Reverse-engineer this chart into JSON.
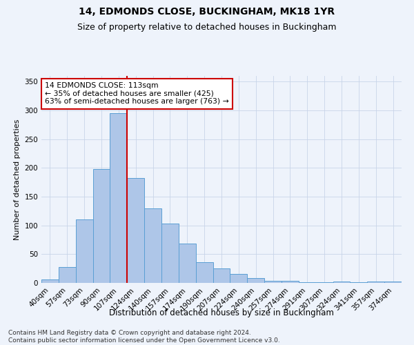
{
  "title": "14, EDMONDS CLOSE, BUCKINGHAM, MK18 1YR",
  "subtitle": "Size of property relative to detached houses in Buckingham",
  "xlabel": "Distribution of detached houses by size in Buckingham",
  "ylabel": "Number of detached properties",
  "categories": [
    "40sqm",
    "57sqm",
    "73sqm",
    "90sqm",
    "107sqm",
    "124sqm",
    "140sqm",
    "157sqm",
    "174sqm",
    "190sqm",
    "207sqm",
    "224sqm",
    "240sqm",
    "257sqm",
    "274sqm",
    "291sqm",
    "307sqm",
    "324sqm",
    "341sqm",
    "357sqm",
    "374sqm"
  ],
  "values": [
    6,
    28,
    110,
    198,
    295,
    182,
    130,
    103,
    68,
    36,
    25,
    16,
    8,
    4,
    4,
    1,
    1,
    2,
    1,
    3,
    2
  ],
  "bar_color": "#aec6e8",
  "bar_edge_color": "#5a9fd4",
  "grid_color": "#c8d4e8",
  "background_color": "#eef3fb",
  "vline_x": 4.5,
  "vline_color": "#cc0000",
  "annotation_text": "14 EDMONDS CLOSE: 113sqm\n← 35% of detached houses are smaller (425)\n63% of semi-detached houses are larger (763) →",
  "annotation_box_color": "#ffffff",
  "annotation_box_edge": "#cc0000",
  "ylim": [
    0,
    360
  ],
  "yticks": [
    0,
    50,
    100,
    150,
    200,
    250,
    300,
    350
  ],
  "footnote": "Contains HM Land Registry data © Crown copyright and database right 2024.\nContains public sector information licensed under the Open Government Licence v3.0.",
  "title_fontsize": 10,
  "subtitle_fontsize": 9,
  "xlabel_fontsize": 8.5,
  "ylabel_fontsize": 8,
  "tick_fontsize": 7.5,
  "annotation_fontsize": 7.8,
  "footnote_fontsize": 6.5
}
